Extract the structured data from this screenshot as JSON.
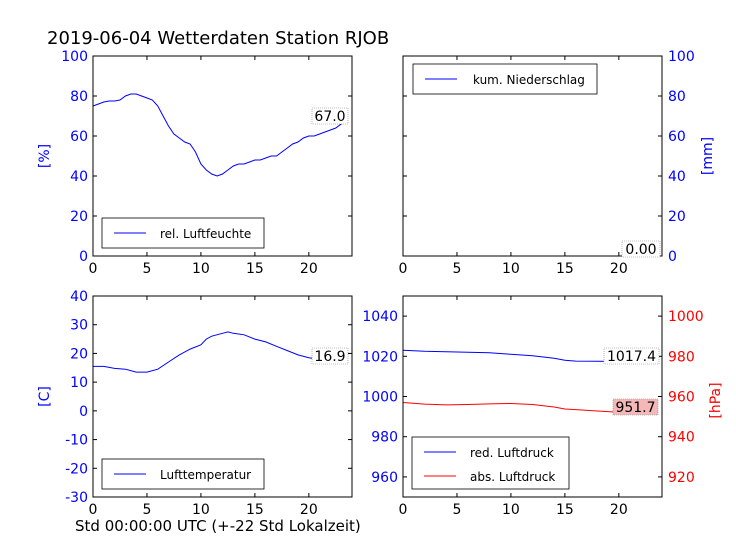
{
  "title": "2019-06-04 Wetterdaten Station RJOB",
  "xlabel": "Std 00:00:00 UTC (+-22 Std Lokalzeit)",
  "colors": {
    "blue": "#0000ff",
    "red": "#ff0000",
    "value_box_red": "#f4b8b8"
  },
  "chart_data": [
    {
      "type": "line",
      "id": "humidity",
      "ylabel": "[%]",
      "xlim": [
        0,
        24
      ],
      "ylim": [
        0,
        100
      ],
      "xticks": [
        0,
        5,
        10,
        15,
        20
      ],
      "yticks": [
        0,
        20,
        40,
        60,
        80,
        100
      ],
      "legend": {
        "placement": "bottom-left",
        "entries": [
          "rel. Luftfeuchte"
        ]
      },
      "value_label": "67.0",
      "series": [
        {
          "name": "rel. Luftfeuchte",
          "color": "#0000ff",
          "x": [
            0,
            0.5,
            1,
            1.5,
            2,
            2.5,
            3,
            3.5,
            4,
            4.5,
            5,
            5.5,
            6,
            6.5,
            7,
            7.5,
            8,
            8.5,
            9,
            9.5,
            10,
            10.5,
            11,
            11.5,
            12,
            12.5,
            13,
            13.5,
            14,
            14.5,
            15,
            15.5,
            16,
            16.5,
            17,
            17.5,
            18,
            18.5,
            19,
            19.5,
            20,
            20.5,
            21,
            21.5,
            22,
            22.5,
            23,
            23.5
          ],
          "y": [
            75,
            76,
            77,
            77.5,
            77.5,
            78,
            80,
            81,
            81,
            80,
            79,
            78,
            75,
            70,
            65,
            61,
            59,
            57,
            56,
            52,
            46,
            43,
            41,
            40,
            41,
            43,
            45,
            46,
            46,
            47,
            48,
            48,
            49,
            50,
            50,
            52,
            54,
            56,
            57,
            59,
            60,
            60,
            61,
            62,
            63,
            64,
            66,
            67
          ]
        }
      ]
    },
    {
      "type": "line",
      "id": "precipitation",
      "ylabel": "[mm]",
      "xlim": [
        0,
        24
      ],
      "ylim": [
        0,
        100
      ],
      "xticks": [
        0,
        5,
        10,
        15,
        20
      ],
      "yticks": [
        0,
        20,
        40,
        60,
        80,
        100
      ],
      "legend": {
        "placement": "top-left",
        "entries": [
          "kum. Niederschlag"
        ]
      },
      "value_label": "0.00",
      "series": [
        {
          "name": "kum. Niederschlag",
          "color": "#0000ff",
          "x": [
            0,
            24
          ],
          "y": [
            0,
            0
          ]
        }
      ]
    },
    {
      "type": "line",
      "id": "temperature",
      "ylabel": "[C]",
      "xlim": [
        0,
        24
      ],
      "ylim": [
        -30,
        40
      ],
      "xticks": [
        0,
        5,
        10,
        15,
        20
      ],
      "yticks": [
        -30,
        -20,
        -10,
        0,
        10,
        20,
        30,
        40
      ],
      "legend": {
        "placement": "bottom-left",
        "entries": [
          "Lufttemperatur"
        ]
      },
      "value_label": "16.9",
      "series": [
        {
          "name": "Lufttemperatur",
          "color": "#0000ff",
          "x": [
            0,
            1,
            2,
            3,
            4,
            5,
            6,
            7,
            8,
            9,
            10,
            10.5,
            11,
            12,
            12.5,
            13,
            14,
            15,
            16,
            17,
            18,
            19,
            20,
            21,
            22,
            23.5
          ],
          "y": [
            15.5,
            15.5,
            14.8,
            14.5,
            13.5,
            13.5,
            14.5,
            17,
            19.5,
            21.5,
            23,
            25,
            26,
            27,
            27.5,
            27,
            26.5,
            25,
            24,
            22.5,
            21,
            19.5,
            18.5,
            18,
            17.5,
            16.9
          ]
        }
      ]
    },
    {
      "type": "line",
      "id": "pressure",
      "ylabel_right": "[hPa]",
      "xlim": [
        0,
        24
      ],
      "ylim": [
        950,
        1050
      ],
      "ylim_right": [
        910,
        1010
      ],
      "xticks": [
        0,
        5,
        10,
        15,
        20
      ],
      "yticks": [
        960,
        980,
        1000,
        1020,
        1040
      ],
      "yticks_right": [
        920,
        940,
        960,
        980,
        1000
      ],
      "legend": {
        "placement": "bottom-left",
        "entries": [
          "red. Luftdruck",
          "abs. Luftdruck"
        ]
      },
      "value_label": "1017.4",
      "value_label_2": "951.7",
      "series": [
        {
          "name": "red. Luftdruck",
          "color": "#0000ff",
          "axis": "left",
          "x": [
            0,
            2,
            4,
            6,
            8,
            10,
            12,
            14,
            15,
            16,
            18,
            20,
            22,
            23.5
          ],
          "y": [
            1023,
            1022.5,
            1022.3,
            1022,
            1021.8,
            1021,
            1020.3,
            1019,
            1018,
            1017.6,
            1017.5,
            1017.4,
            1017.5,
            1017.4
          ]
        },
        {
          "name": "abs. Luftdruck",
          "color": "#ff0000",
          "axis": "right",
          "x": [
            0,
            2,
            4,
            6,
            8,
            10,
            12,
            14,
            15,
            16,
            18,
            20,
            22,
            23.5
          ],
          "y": [
            957,
            956.2,
            955.8,
            956,
            956.3,
            956.5,
            956,
            954.8,
            953.8,
            953.5,
            952.8,
            952.2,
            951.8,
            951.7
          ]
        }
      ]
    }
  ]
}
